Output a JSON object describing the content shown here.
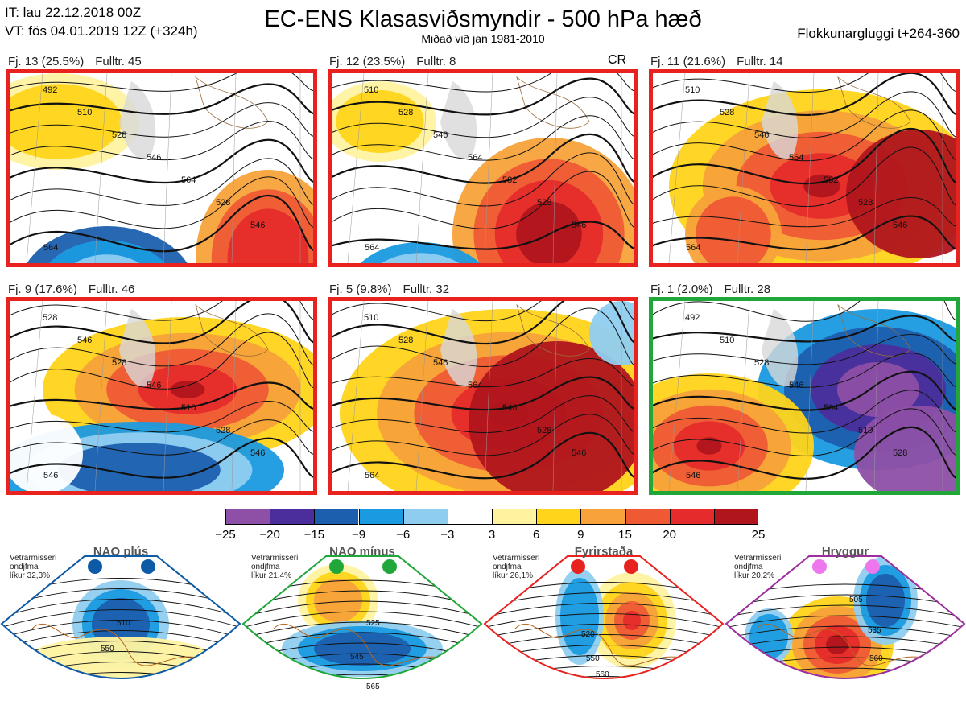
{
  "header": {
    "it_line": "IT: lau 22.12.2018 00Z",
    "vt_line": "VT: fös 04.01.2019 12Z  (+324h)",
    "title": "EC-ENS Klasasviðsmyndir - 500 hPa hæð",
    "subtitle": "Miðað við jan 1981-2010",
    "window": "Flokkunargluggi t+264-360"
  },
  "panels": [
    {
      "cluster": "Fj. 13 (25.5%)",
      "member": "Fulltr. 45",
      "tag": "",
      "border": "red",
      "contours": [
        "492",
        "510",
        "528",
        "546",
        "564",
        "528",
        "546",
        "564"
      ]
    },
    {
      "cluster": "Fj. 12 (23.5%)",
      "member": "Fulltr. 8",
      "tag": "CR",
      "border": "red",
      "contours": [
        "510",
        "528",
        "546",
        "564",
        "582",
        "528",
        "546",
        "564"
      ]
    },
    {
      "cluster": "Fj. 11 (21.6%)",
      "member": "Fulltr. 14",
      "tag": "",
      "border": "red",
      "contours": [
        "510",
        "528",
        "546",
        "564",
        "582",
        "528",
        "546",
        "564"
      ]
    },
    {
      "cluster": "Fj. 9 (17.6%)",
      "member": "Fulltr. 46",
      "tag": "",
      "border": "red",
      "contours": [
        "528",
        "546",
        "528",
        "546",
        "510",
        "528",
        "546",
        "546"
      ]
    },
    {
      "cluster": "Fj. 5 (9.8%)",
      "member": "Fulltr. 32",
      "tag": "",
      "border": "red",
      "contours": [
        "510",
        "528",
        "546",
        "564",
        "546",
        "528",
        "546",
        "564"
      ]
    },
    {
      "cluster": "Fj. 1 (2.0%)",
      "member": "Fulltr. 28",
      "tag": "",
      "border": "green",
      "contours": [
        "492",
        "510",
        "528",
        "546",
        "564",
        "510",
        "528",
        "546"
      ]
    }
  ],
  "colorbar": {
    "ticks": [
      "-25",
      "-20",
      "-15",
      "-9",
      "-6",
      "-3",
      "3",
      "6",
      "9",
      "15",
      "20",
      "25"
    ],
    "colors": [
      "#8e4fa6",
      "#4b2e9b",
      "#1c5fae",
      "#1a9ae0",
      "#8fcdf0",
      "#ffffff",
      "#fff3a0",
      "#ffd41a",
      "#f7a23a",
      "#ef5a35",
      "#e52b2b",
      "#b0151c"
    ]
  },
  "regimes": [
    {
      "name": "NAO plús",
      "note_lines": [
        "Vetrarmisseri",
        "ondjfma",
        "líkur 32,3%"
      ],
      "color": "#0d5aa7",
      "labels": [
        "510",
        "550"
      ]
    },
    {
      "name": "NAO mínus",
      "note_lines": [
        "Vetrarmisseri",
        "ondjfma",
        "líkur 21,4%"
      ],
      "color": "#21a639",
      "labels": [
        "525",
        "545",
        "565"
      ]
    },
    {
      "name": "Fyrirstaða",
      "note_lines": [
        "Vetrarmisseri",
        "ondjfma",
        "líkur 26,1%"
      ],
      "color": "#e8221f",
      "labels": [
        "520",
        "550",
        "560"
      ]
    },
    {
      "name": "Hryggur",
      "note_lines": [
        "Vetrarmisseri",
        "ondjfma",
        "líkur 20,2%"
      ],
      "color": "#9b2e9b",
      "labels": [
        "505",
        "535",
        "560"
      ]
    }
  ]
}
